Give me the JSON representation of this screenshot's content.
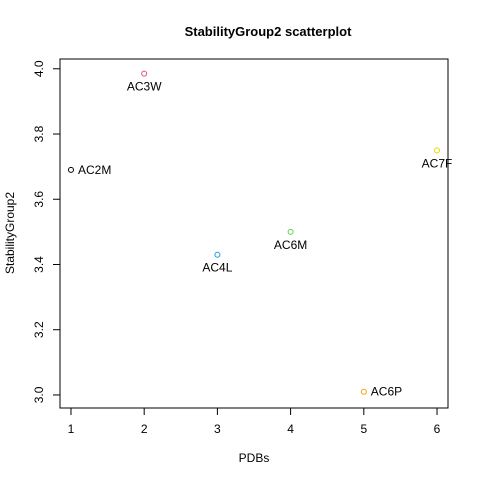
{
  "chart_data": {
    "type": "scatter",
    "title": "StabilityGroup2 scatterplot",
    "xlabel": "PDBs",
    "ylabel": "StabilityGroup2",
    "xlim": [
      0.85,
      6.15
    ],
    "ylim": [
      2.96,
      4.03
    ],
    "xticks": [
      1,
      2,
      3,
      4,
      5,
      6
    ],
    "yticks": [
      3.0,
      3.2,
      3.4,
      3.6,
      3.8,
      4.0
    ],
    "ytick_labels": [
      "3.0",
      "3.2",
      "3.4",
      "3.6",
      "3.8",
      "4.0"
    ],
    "grid": false,
    "points": [
      {
        "x": 1,
        "y": 3.69,
        "label": "AC2M",
        "color": "#000000",
        "label_pos": "right"
      },
      {
        "x": 2,
        "y": 3.985,
        "label": "AC3W",
        "color": "#DF536B",
        "label_pos": "below"
      },
      {
        "x": 3,
        "y": 3.43,
        "label": "AC4L",
        "color": "#2297E6",
        "label_pos": "below"
      },
      {
        "x": 4,
        "y": 3.5,
        "label": "AC6M",
        "color": "#61D04F",
        "label_pos": "below"
      },
      {
        "x": 5,
        "y": 3.01,
        "label": "AC6P",
        "color": "#F5A300",
        "label_pos": "right"
      },
      {
        "x": 6,
        "y": 3.75,
        "label": "AC7F",
        "color": "#E6D800",
        "label_pos": "below"
      }
    ]
  }
}
